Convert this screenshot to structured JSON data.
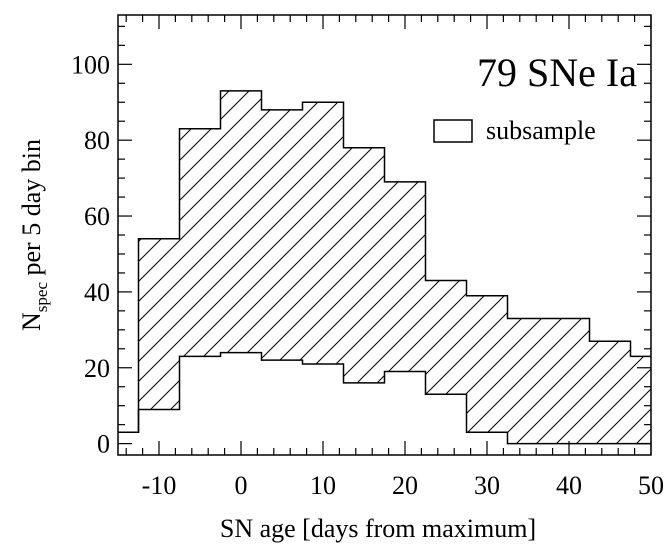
{
  "chart_data": {
    "type": "histogram",
    "title": "",
    "annotation": "79 SNe Ia",
    "xlabel": "SN age [days from maximum]",
    "ylabel_main": "N",
    "ylabel_sub": "spec",
    "ylabel_rest": " per 5 day bin",
    "xlim": [
      -15,
      50
    ],
    "ylim": [
      -3,
      113
    ],
    "x_ticks": [
      -10,
      0,
      10,
      20,
      30,
      40,
      50
    ],
    "x_tick_labels": [
      "-10",
      "0",
      "10",
      "20",
      "30",
      "40",
      "50"
    ],
    "y_ticks": [
      0,
      20,
      40,
      60,
      80,
      100
    ],
    "y_tick_labels": [
      "0",
      "20",
      "40",
      "60",
      "80",
      "100"
    ],
    "grid": false,
    "legend_position": "top-right",
    "legend": [
      {
        "label": "subsample",
        "style": "open box"
      }
    ],
    "bin_edges": [
      -15,
      -12.5,
      -7.5,
      -2.5,
      2.5,
      7.5,
      12.5,
      17.5,
      22.5,
      27.5,
      32.5,
      37.5,
      42.5,
      47.5,
      50
    ],
    "series": [
      {
        "role": "total",
        "values": [
          3,
          54,
          83,
          93,
          88,
          90,
          78,
          69,
          43,
          39,
          33,
          33,
          27,
          23
        ]
      },
      {
        "name": "subsample",
        "values": [
          3,
          9,
          23,
          24,
          22,
          21,
          16,
          19,
          13,
          3,
          0,
          0,
          0,
          0
        ]
      }
    ]
  }
}
